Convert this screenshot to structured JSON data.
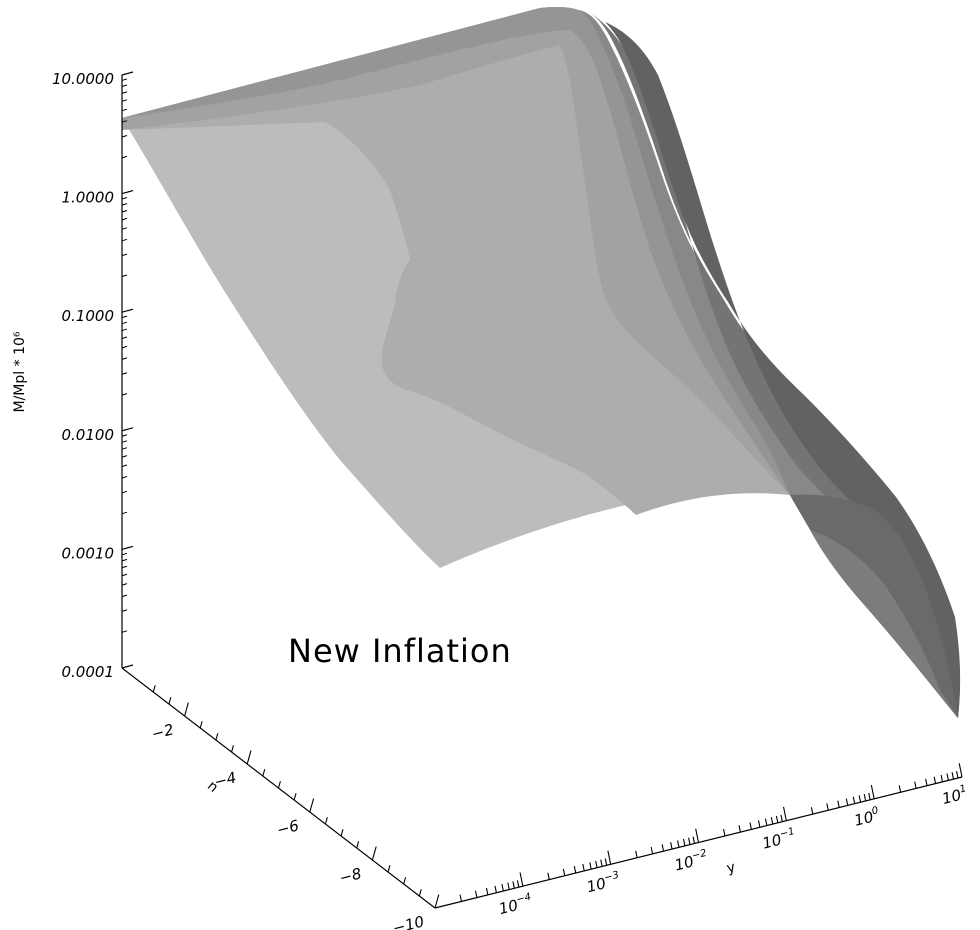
{
  "chart_data": {
    "type": "surface",
    "annotation": "New Inflation",
    "z_axis": {
      "label": "M/Mpl * 10⁶",
      "scale": "log",
      "range": [
        0.0001,
        10
      ],
      "ticks": [
        {
          "value": 10,
          "label": "10.0000"
        },
        {
          "value": 1,
          "label": "1.0000"
        },
        {
          "value": 0.1,
          "label": "0.1000"
        },
        {
          "value": 0.01,
          "label": "0.0100"
        },
        {
          "value": 0.001,
          "label": "0.0010"
        },
        {
          "value": 0.0001,
          "label": "0.0001"
        }
      ]
    },
    "n_axis": {
      "label": "n",
      "range": [
        0,
        -10
      ],
      "ticks": [
        {
          "value": -2,
          "label": "−2"
        },
        {
          "value": -4,
          "label": "−4"
        },
        {
          "value": -6,
          "label": "−6"
        },
        {
          "value": -8,
          "label": "−8"
        },
        {
          "value": -10,
          "label": "−10"
        }
      ]
    },
    "y_axis": {
      "label": "y",
      "scale": "log",
      "range": [
        1e-05,
        10
      ],
      "ticks": [
        {
          "value": 0.0001,
          "base": "10",
          "exp": "−4"
        },
        {
          "value": 0.001,
          "base": "10",
          "exp": "−3"
        },
        {
          "value": 0.01,
          "base": "10",
          "exp": "−2"
        },
        {
          "value": 0.1,
          "base": "10",
          "exp": "−1"
        },
        {
          "value": 1,
          "base": "10",
          "exp": "0"
        },
        {
          "value": 10,
          "base": "10",
          "exp": "1"
        }
      ]
    },
    "shading_levels": [
      "#bcbcbc",
      "#acacac",
      "#a2a2a2",
      "#949494",
      "#868686",
      "#747474",
      "#626262"
    ]
  }
}
